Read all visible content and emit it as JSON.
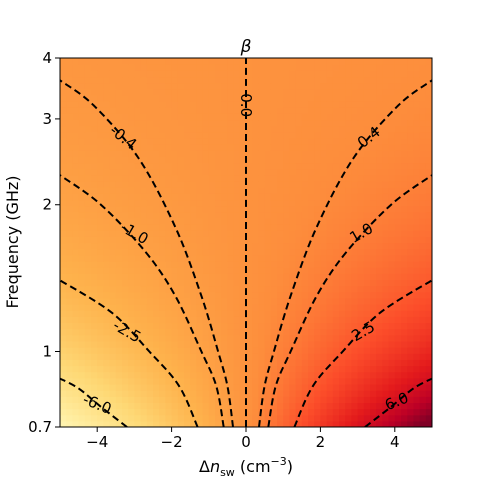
{
  "chart_data": {
    "type": "heatmap",
    "title": "β",
    "xlabel_prefix": "Δ",
    "xlabel_var": "n",
    "xlabel_sub": "sw",
    "xlabel_units": " (cm",
    "xlabel_exp": "−3",
    "xlabel_close": ")",
    "ylabel": "Frequency (GHz)",
    "xlim": [
      -5,
      5
    ],
    "ylim": [
      0.7,
      4
    ],
    "yscale": "log",
    "grid": false,
    "x_ticks": [
      {
        "value": -4,
        "label": "−4"
      },
      {
        "value": -2,
        "label": "−2"
      },
      {
        "value": 0,
        "label": "0"
      },
      {
        "value": 2,
        "label": "2"
      },
      {
        "value": 4,
        "label": "4"
      }
    ],
    "y_ticks": [
      {
        "value": 0.7,
        "label": "0.7"
      },
      {
        "value": 1,
        "label": "1"
      },
      {
        "value": 2,
        "label": "2"
      },
      {
        "value": 3,
        "label": "3"
      },
      {
        "value": 4,
        "label": "4"
      }
    ],
    "colormap": "YlOrRd",
    "contour_style": "dashed",
    "contour_color": "#000000",
    "contours": [
      {
        "level": 0.0,
        "label": "0.0",
        "points": [
          [
            0,
            0.7
          ],
          [
            0,
            4
          ]
        ]
      },
      {
        "level": 0.4,
        "label": "0.4",
        "points": [
          [
            0.35,
            0.7
          ],
          [
            0.5,
            0.85
          ],
          [
            0.75,
            1.0
          ],
          [
            1.2,
            1.3
          ],
          [
            1.9,
            1.8
          ],
          [
            2.9,
            2.5
          ],
          [
            4.1,
            3.2
          ],
          [
            5,
            3.6
          ]
        ]
      },
      {
        "level": -0.4,
        "label": "-0.4",
        "points": [
          [
            -0.35,
            0.7
          ],
          [
            -0.5,
            0.85
          ],
          [
            -0.75,
            1.0
          ],
          [
            -1.2,
            1.3
          ],
          [
            -1.9,
            1.8
          ],
          [
            -2.9,
            2.5
          ],
          [
            -4.1,
            3.2
          ],
          [
            -5,
            3.6
          ]
        ]
      },
      {
        "level": 1.0,
        "label": "1.0",
        "points": [
          [
            0.6,
            0.7
          ],
          [
            0.8,
            0.85
          ],
          [
            1.2,
            1.0
          ],
          [
            1.9,
            1.3
          ],
          [
            2.7,
            1.6
          ],
          [
            3.9,
            2.0
          ],
          [
            5,
            2.3
          ]
        ]
      },
      {
        "level": -1.0,
        "label": "-1.0",
        "points": [
          [
            -0.6,
            0.7
          ],
          [
            -0.8,
            0.85
          ],
          [
            -1.2,
            1.0
          ],
          [
            -1.9,
            1.3
          ],
          [
            -2.7,
            1.6
          ],
          [
            -3.9,
            2.0
          ],
          [
            -5,
            2.3
          ]
        ]
      },
      {
        "level": 2.5,
        "label": "2.5",
        "points": [
          [
            1.3,
            0.7
          ],
          [
            1.8,
            0.85
          ],
          [
            2.6,
            1.0
          ],
          [
            3.6,
            1.2
          ],
          [
            5,
            1.4
          ]
        ]
      },
      {
        "level": -2.5,
        "label": "-2.5",
        "points": [
          [
            -1.3,
            0.7
          ],
          [
            -1.8,
            0.85
          ],
          [
            -2.6,
            1.0
          ],
          [
            -3.6,
            1.2
          ],
          [
            -5,
            1.4
          ]
        ]
      },
      {
        "level": 6.0,
        "label": "6.0",
        "points": [
          [
            3.2,
            0.7
          ],
          [
            3.9,
            0.77
          ],
          [
            4.5,
            0.84
          ],
          [
            5,
            0.88
          ]
        ]
      },
      {
        "level": -6.0,
        "label": "-6.0",
        "points": [
          [
            -3.2,
            0.7
          ],
          [
            -3.9,
            0.77
          ],
          [
            -4.5,
            0.84
          ],
          [
            -5,
            0.88
          ]
        ]
      }
    ],
    "contour_labels": [
      {
        "label": "0.0",
        "x": 0,
        "y": 3.2,
        "rotation": 90
      },
      {
        "label": "0.4",
        "x": 3.3,
        "y": 2.75,
        "rotation": -38
      },
      {
        "label": "-0.4",
        "x": -3.3,
        "y": 2.75,
        "rotation": 38
      },
      {
        "label": "1.0",
        "x": 3.1,
        "y": 1.75,
        "rotation": -30
      },
      {
        "label": "-1.0",
        "x": -3.0,
        "y": 1.75,
        "rotation": 30
      },
      {
        "label": "2.5",
        "x": 3.15,
        "y": 1.1,
        "rotation": -30
      },
      {
        "label": "-2.5",
        "x": -3.2,
        "y": 1.1,
        "rotation": 30
      },
      {
        "label": "6.0",
        "x": 4.05,
        "y": 0.79,
        "rotation": -22
      },
      {
        "label": "-6.0",
        "x": -4.0,
        "y": 0.78,
        "rotation": 22
      }
    ]
  }
}
